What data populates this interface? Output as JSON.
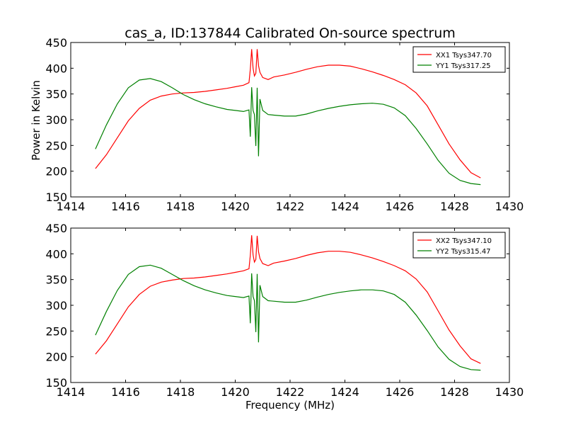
{
  "chart_data": [
    {
      "type": "line",
      "title": "cas_a, ID:137844 Calibrated On-source spectrum",
      "xlabel": "",
      "ylabel": "Power in Kelvin",
      "xlim": [
        1414,
        1430
      ],
      "ylim": [
        150,
        450
      ],
      "xticks": [
        1414,
        1416,
        1418,
        1420,
        1422,
        1424,
        1426,
        1428,
        1430
      ],
      "yticks": [
        150,
        200,
        250,
        300,
        350,
        400,
        450
      ],
      "legend_position": "top-right",
      "grid": false,
      "series": [
        {
          "name": "XX1 Tsys347.70",
          "color": "#ff0000",
          "x": [
            1414.9,
            1415.3,
            1415.7,
            1416.1,
            1416.5,
            1416.9,
            1417.3,
            1417.7,
            1418.1,
            1418.5,
            1418.9,
            1419.3,
            1419.7,
            1420.0,
            1420.3,
            1420.5,
            1420.55,
            1420.6,
            1420.65,
            1420.7,
            1420.75,
            1420.8,
            1420.85,
            1420.9,
            1421.0,
            1421.2,
            1421.4,
            1421.8,
            1422.2,
            1422.6,
            1423.0,
            1423.4,
            1423.8,
            1424.2,
            1424.6,
            1425.0,
            1425.4,
            1425.8,
            1426.2,
            1426.6,
            1427.0,
            1427.4,
            1427.8,
            1428.2,
            1428.6,
            1428.95
          ],
          "y": [
            205,
            232,
            265,
            298,
            322,
            338,
            346,
            350,
            352,
            353,
            355,
            358,
            361,
            364,
            367,
            372,
            398,
            437,
            400,
            385,
            390,
            437,
            405,
            392,
            382,
            378,
            383,
            387,
            392,
            398,
            403,
            406,
            406,
            404,
            399,
            393,
            386,
            378,
            368,
            352,
            327,
            290,
            253,
            222,
            197,
            187
          ]
        },
        {
          "name": "YY1 Tsys317.25",
          "color": "#008000",
          "x": [
            1414.9,
            1415.3,
            1415.7,
            1416.1,
            1416.5,
            1416.9,
            1417.3,
            1417.7,
            1418.1,
            1418.5,
            1418.9,
            1419.3,
            1419.7,
            1420.0,
            1420.3,
            1420.5,
            1420.55,
            1420.6,
            1420.65,
            1420.7,
            1420.75,
            1420.8,
            1420.85,
            1420.9,
            1421.0,
            1421.2,
            1421.4,
            1421.8,
            1422.2,
            1422.6,
            1423.0,
            1423.4,
            1423.8,
            1424.2,
            1424.6,
            1425.0,
            1425.4,
            1425.8,
            1426.2,
            1426.6,
            1427.0,
            1427.4,
            1427.8,
            1428.2,
            1428.6,
            1428.95
          ],
          "y": [
            243,
            290,
            331,
            362,
            377,
            380,
            374,
            362,
            349,
            339,
            331,
            325,
            320,
            318,
            316,
            319,
            267,
            363,
            318,
            310,
            249,
            362,
            229,
            340,
            318,
            310,
            309,
            307,
            307,
            311,
            317,
            322,
            326,
            329,
            331,
            332,
            330,
            323,
            308,
            283,
            253,
            221,
            196,
            182,
            176,
            174
          ]
        }
      ]
    },
    {
      "type": "line",
      "title": "",
      "xlabel": "Frequency (MHz)",
      "ylabel": "",
      "xlim": [
        1414,
        1430
      ],
      "ylim": [
        150,
        450
      ],
      "xticks": [
        1414,
        1416,
        1418,
        1420,
        1422,
        1424,
        1426,
        1428,
        1430
      ],
      "yticks": [
        150,
        200,
        250,
        300,
        350,
        400,
        450
      ],
      "legend_position": "top-right",
      "grid": false,
      "series": [
        {
          "name": "XX2 Tsys347.10",
          "color": "#ff0000",
          "x": [
            1414.9,
            1415.3,
            1415.7,
            1416.1,
            1416.5,
            1416.9,
            1417.3,
            1417.7,
            1418.1,
            1418.5,
            1418.9,
            1419.3,
            1419.7,
            1420.0,
            1420.3,
            1420.5,
            1420.55,
            1420.6,
            1420.65,
            1420.7,
            1420.75,
            1420.8,
            1420.85,
            1420.9,
            1421.0,
            1421.2,
            1421.4,
            1421.8,
            1422.2,
            1422.6,
            1423.0,
            1423.4,
            1423.8,
            1424.2,
            1424.6,
            1425.0,
            1425.4,
            1425.8,
            1426.2,
            1426.6,
            1427.0,
            1427.4,
            1427.8,
            1428.2,
            1428.6,
            1428.95
          ],
          "y": [
            205,
            231,
            264,
            297,
            321,
            337,
            345,
            349,
            352,
            353,
            355,
            358,
            361,
            364,
            367,
            371,
            397,
            436,
            398,
            384,
            389,
            435,
            404,
            391,
            381,
            377,
            382,
            386,
            391,
            397,
            402,
            405,
            405,
            403,
            398,
            392,
            385,
            377,
            367,
            351,
            326,
            289,
            252,
            221,
            196,
            187
          ]
        },
        {
          "name": "YY2 Tsys315.47",
          "color": "#008000",
          "x": [
            1414.9,
            1415.3,
            1415.7,
            1416.1,
            1416.5,
            1416.9,
            1417.3,
            1417.7,
            1418.1,
            1418.5,
            1418.9,
            1419.3,
            1419.7,
            1420.0,
            1420.3,
            1420.5,
            1420.55,
            1420.6,
            1420.65,
            1420.7,
            1420.75,
            1420.8,
            1420.85,
            1420.9,
            1421.0,
            1421.2,
            1421.4,
            1421.8,
            1422.2,
            1422.6,
            1423.0,
            1423.4,
            1423.8,
            1424.2,
            1424.6,
            1425.0,
            1425.4,
            1425.8,
            1426.2,
            1426.6,
            1427.0,
            1427.4,
            1427.8,
            1428.2,
            1428.6,
            1428.95
          ],
          "y": [
            242,
            288,
            329,
            360,
            375,
            378,
            372,
            360,
            348,
            338,
            330,
            324,
            319,
            317,
            315,
            318,
            265,
            362,
            317,
            309,
            248,
            361,
            228,
            339,
            317,
            309,
            308,
            306,
            306,
            310,
            316,
            321,
            325,
            328,
            330,
            330,
            328,
            321,
            306,
            281,
            251,
            219,
            195,
            181,
            175,
            174
          ]
        }
      ]
    }
  ]
}
